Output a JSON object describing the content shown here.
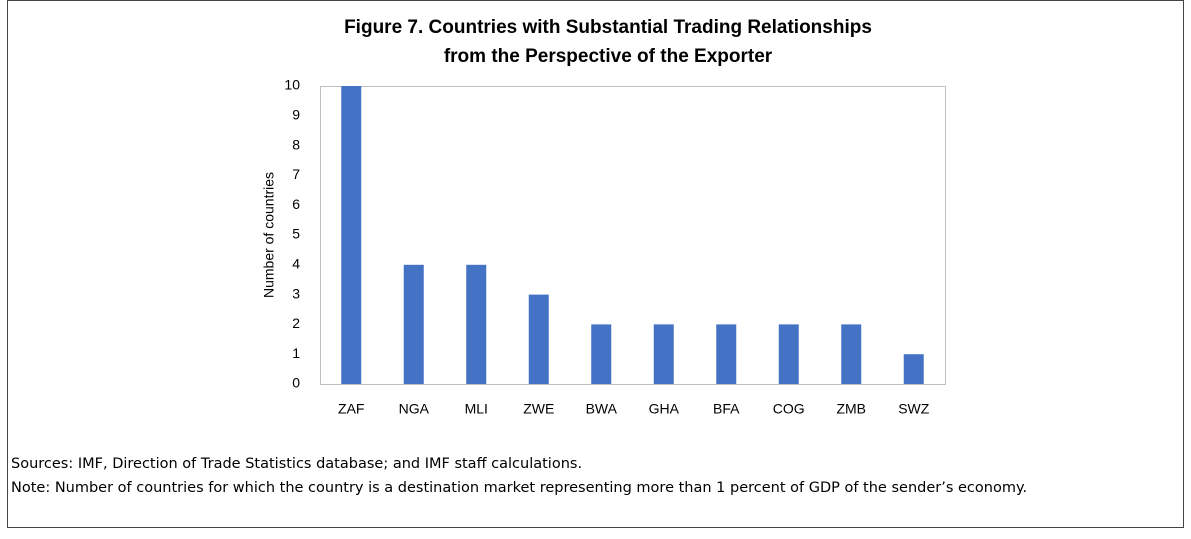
{
  "chart_data": {
    "type": "bar",
    "title": "Figure 7. Countries with Substantial Trading Relationships",
    "subtitle": "from the Perspective of the Exporter",
    "y_label": "Number of countries",
    "categories": [
      "ZAF",
      "NGA",
      "MLI",
      "ZWE",
      "BWA",
      "GHA",
      "BFA",
      "COG",
      "ZMB",
      "SWZ"
    ],
    "values": [
      10,
      4,
      4,
      3,
      2,
      2,
      2,
      2,
      2,
      1
    ],
    "color": "#4472c4",
    "ylim": [
      0,
      10
    ],
    "yticks": [
      0,
      1,
      2,
      3,
      4,
      5,
      6,
      7,
      8,
      9,
      10
    ],
    "grid": false
  },
  "notes": {
    "sources": "Sources: IMF, Direction of Trade Statistics database; and IMF staff calculations.",
    "note": "Note: Number of countries for which the country is a destination market representing more than 1 percent of GDP of the sender’s economy."
  }
}
